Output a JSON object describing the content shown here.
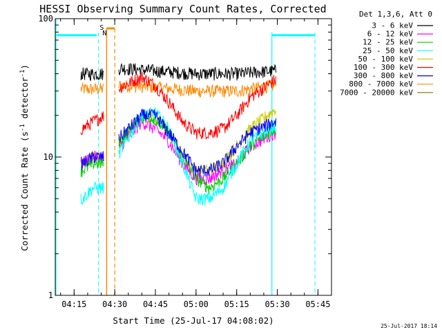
{
  "chart_data": {
    "type": "line",
    "title": "HESSI Observing Summary Count Rates, Corrected",
    "xlabel": "Start Time (25-Jul-17 04:08:02)",
    "ylabel_main": "Corrected Count Rate (s",
    "ylabel_sup1": "-1",
    "ylabel_mid": " detector",
    "ylabel_sup2": "-1",
    "ylabel_end": ")",
    "y_scale": "log",
    "ylim": [
      1,
      100
    ],
    "y_ticks": [
      {
        "v": 1,
        "label": "1"
      },
      {
        "v": 10,
        "label": "10"
      },
      {
        "v": 100,
        "label": "100"
      }
    ],
    "xlim": [
      "04:08:02",
      "05:50:00"
    ],
    "x_ticks": [
      "04:15",
      "04:30",
      "04:45",
      "05:00",
      "05:15",
      "05:30",
      "05:45"
    ],
    "legend_title": "Det 1,3,6, Att 0",
    "legend_position": "right",
    "series": [
      {
        "name": "3 - 6 keV",
        "color": "#000000",
        "x": [
          "04:18",
          "04:22",
          "04:26",
          "04:32",
          "04:45",
          "05:00",
          "05:15",
          "05:29"
        ],
        "values": [
          40,
          40,
          40,
          44,
          42,
          40,
          40,
          42
        ]
      },
      {
        "name": "6 - 12 keV",
        "color": "#ff00ff",
        "x": [
          "04:18",
          "04:22",
          "04:26",
          "04:32",
          "04:40",
          "04:45",
          "04:50",
          "04:55",
          "05:00",
          "05:05",
          "05:10",
          "05:15",
          "05:20",
          "05:29"
        ],
        "values": [
          9,
          10,
          10,
          12,
          18,
          16,
          13,
          9,
          7,
          7,
          8,
          9,
          12,
          15
        ]
      },
      {
        "name": "12 - 25 keV",
        "color": "#00cc00",
        "x": [
          "04:18",
          "04:22",
          "04:26",
          "04:32",
          "04:40",
          "04:45",
          "04:50",
          "04:55",
          "05:00",
          "05:05",
          "05:10",
          "05:15",
          "05:20",
          "05:29"
        ],
        "values": [
          8,
          9,
          9,
          13,
          20,
          19,
          15,
          10,
          7,
          6,
          7,
          9,
          12,
          16
        ]
      },
      {
        "name": "25 - 50 keV",
        "color": "#00ffff",
        "x": [
          "04:18",
          "04:22",
          "04:26",
          "04:32",
          "04:40",
          "04:45",
          "04:50",
          "04:55",
          "05:00",
          "05:05",
          "05:10",
          "05:15",
          "05:20",
          "05:29"
        ],
        "values": [
          5,
          6,
          6,
          11,
          20,
          21,
          16,
          9,
          5,
          5,
          6,
          9,
          13,
          17
        ]
      },
      {
        "name": "50 - 100 keV",
        "color": "#cccc00",
        "x": [
          "04:18",
          "04:22",
          "04:26",
          "04:32",
          "04:40",
          "04:45",
          "04:50",
          "04:55",
          "05:00",
          "05:05",
          "05:10",
          "05:15",
          "05:20",
          "05:29"
        ],
        "values": [
          9,
          10,
          10,
          13,
          19,
          19,
          15,
          10,
          8,
          8,
          9,
          12,
          16,
          22
        ]
      },
      {
        "name": "100 - 300 keV",
        "color": "#ff0000",
        "x": [
          "04:18",
          "04:22",
          "04:26",
          "04:32",
          "04:40",
          "04:45",
          "04:50",
          "04:55",
          "05:00",
          "05:05",
          "05:10",
          "05:15",
          "05:20",
          "05:29"
        ],
        "values": [
          16,
          18,
          20,
          32,
          38,
          33,
          25,
          18,
          15,
          15,
          16,
          20,
          27,
          36
        ]
      },
      {
        "name": "300 - 800 keV",
        "color": "#0000ff",
        "x": [
          "04:18",
          "04:22",
          "04:26",
          "04:32",
          "04:40",
          "04:45",
          "04:50",
          "04:55",
          "05:00",
          "05:05",
          "05:10",
          "05:15",
          "05:20",
          "05:29"
        ],
        "values": [
          9,
          10,
          10,
          14,
          20,
          20,
          15,
          11,
          8,
          8,
          9,
          12,
          15,
          18
        ]
      },
      {
        "name": "800 - 7000 keV",
        "color": "#ff8800",
        "x": [
          "04:18",
          "04:22",
          "04:26",
          "04:32",
          "04:45",
          "05:00",
          "05:15",
          "05:29"
        ],
        "values": [
          31,
          31,
          31,
          33,
          32,
          30,
          30,
          33
        ]
      },
      {
        "name": "7000 - 20000 keV",
        "color": "#996600",
        "x": [],
        "values": []
      }
    ],
    "annotations": {
      "saa": {
        "label": "S",
        "color": "#ff8800",
        "x": [
          "04:27",
          "04:30"
        ]
      },
      "night": {
        "label": "N",
        "color": "#00ffff",
        "x": [
          "04:24",
          "05:28"
        ]
      },
      "night_band": {
        "color": "#00ffff",
        "value": 76
      }
    }
  },
  "footer_timestamp": "25-Jul-2017 18:14"
}
